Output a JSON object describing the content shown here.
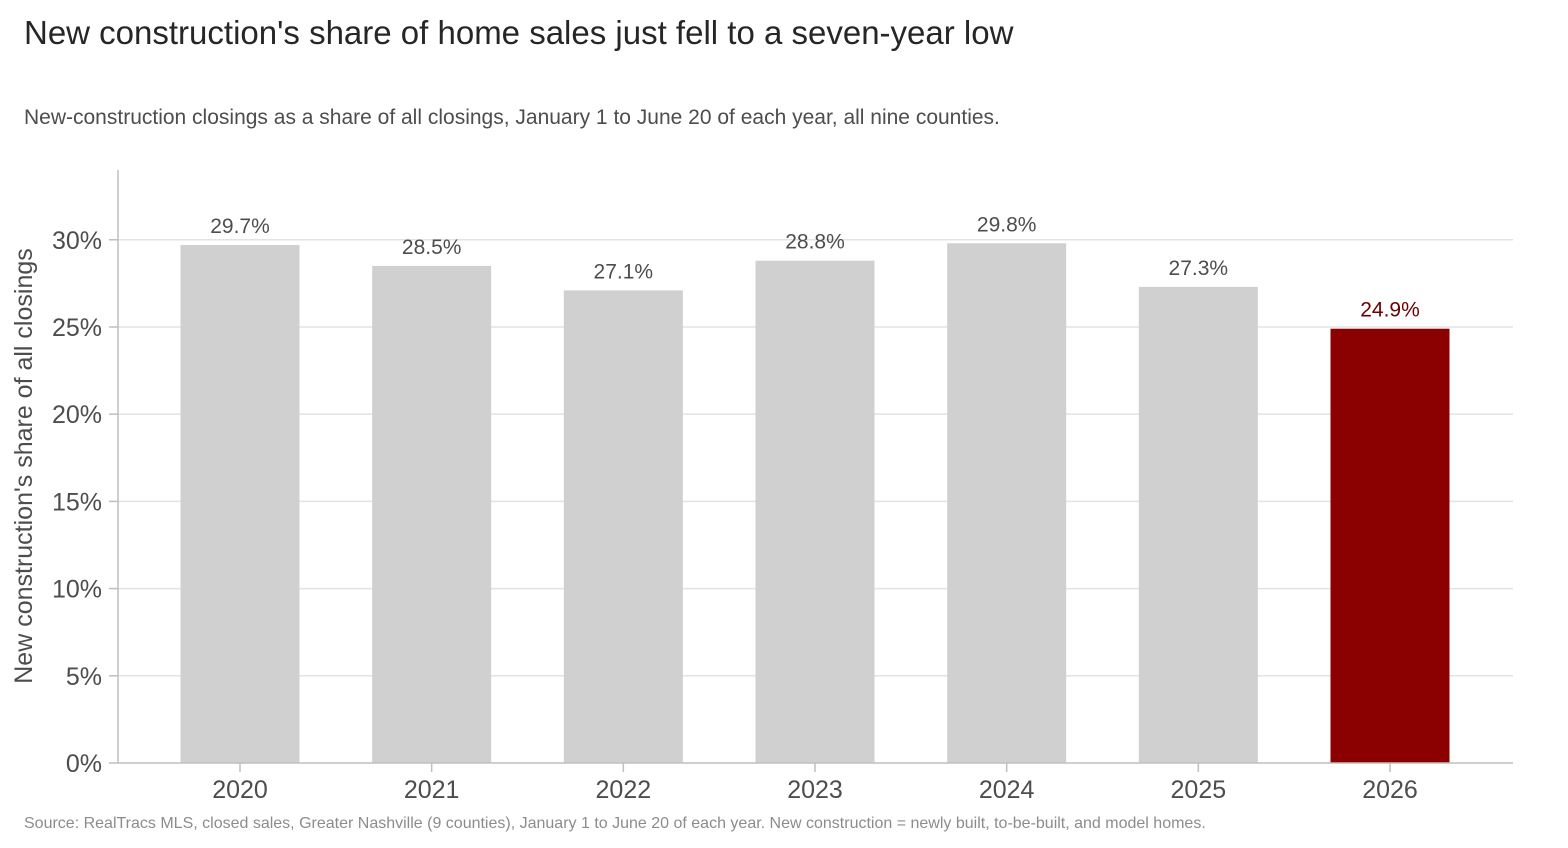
{
  "title": "New construction's share of home sales just fell to a seven-year low",
  "subtitle": "New-construction closings as a share of all closings, January 1 to June 20 of each year, all nine counties.",
  "source": "Source: RealTracs MLS, closed sales, Greater Nashville (9 counties), January 1 to June 20 of each year. New construction = newly built, to-be-built, and model homes.",
  "chart_data": {
    "type": "bar",
    "categories": [
      "2020",
      "2021",
      "2022",
      "2023",
      "2024",
      "2025",
      "2026"
    ],
    "values": [
      29.7,
      28.5,
      27.1,
      28.8,
      29.8,
      27.3,
      24.9
    ],
    "data_labels": [
      "29.7%",
      "28.5%",
      "27.1%",
      "28.8%",
      "29.8%",
      "27.3%",
      "24.9%"
    ],
    "ylabel": "New construction's share of all closings",
    "xlabel": "",
    "ylim": [
      0,
      34
    ],
    "yticks": [
      0,
      5,
      10,
      15,
      20,
      25,
      30
    ],
    "ytick_labels": [
      "0%",
      "5%",
      "10%",
      "15%",
      "20%",
      "25%",
      "30%"
    ],
    "grid": "horizontal",
    "highlight_index": 6,
    "colors": {
      "bar": "#d0d0d0",
      "highlight": "#8b0000",
      "label": "#4d4d4d",
      "highlight_label": "#6b0000",
      "grid": "#e3e3e3",
      "axis": "#bfbfbf"
    }
  }
}
